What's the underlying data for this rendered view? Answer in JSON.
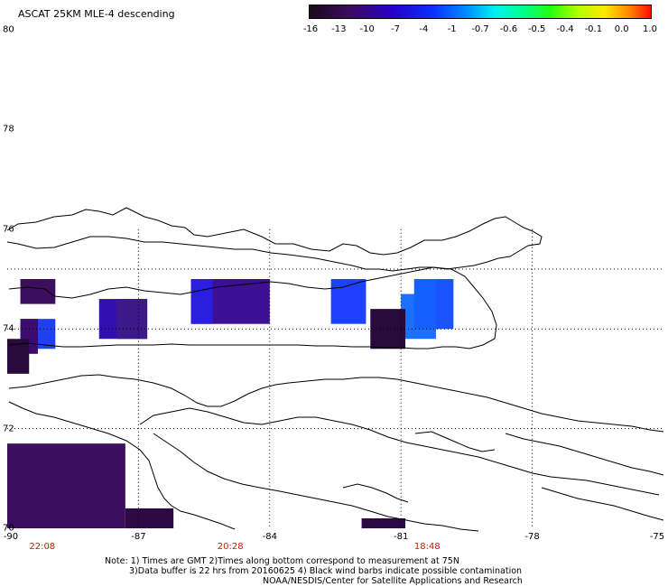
{
  "title": "ASCAT 25KM MLE-4 descending",
  "colorbar": {
    "labels": [
      "-16",
      "-13",
      "-10",
      "-7",
      "-4",
      "-1",
      "-0.7",
      "-0.6",
      "-0.5",
      "-0.4",
      "-0.1",
      "0.0",
      "1.0"
    ],
    "colors": [
      "#2a0030",
      "#3a0a63",
      "#2e00a8",
      "#1600ff",
      "#0070ff",
      "#00d2ff",
      "#00ffb0",
      "#10ff20",
      "#9aff00",
      "#ffff00",
      "#ffbf00",
      "#ff6a00",
      "#ff1000"
    ]
  },
  "y_axis": {
    "labels": [
      "80",
      "78",
      "76",
      "74",
      "72",
      "70"
    ],
    "values": [
      80,
      78,
      76,
      74,
      72,
      70
    ]
  },
  "x_axis": {
    "labels": [
      "-90",
      "-87",
      "-84",
      "-81",
      "-78",
      "-75"
    ],
    "values": [
      -90,
      -87,
      -84,
      -81,
      -78,
      -75
    ]
  },
  "pass_times": [
    {
      "label": "22:08",
      "lon": -89.2
    },
    {
      "label": "20:28",
      "lon": -84.9
    },
    {
      "label": "18:48",
      "lon": -80.4
    }
  ],
  "footer": {
    "line1": "Note: 1) Times are GMT 2)Times along bottom correspond to measurement at 75N",
    "line2": "3)Data buffer is 22 hrs from 20160625 4) Black wind barbs indicate possible contamination",
    "line3": "NOAA/NESDIS/Center for Satellite Applications and Research"
  },
  "swaths": [
    {
      "lon": [
        -89.7,
        -88.9
      ],
      "lat": [
        74.5,
        75.0
      ],
      "color": "#3d0e5e"
    },
    {
      "lon": [
        -89.7,
        -88.9
      ],
      "lat": [
        73.6,
        74.2
      ],
      "color": "#1f40f0"
    },
    {
      "lon": [
        -89.7,
        -89.3
      ],
      "lat": [
        73.5,
        74.2
      ],
      "color": "#3d0b6e"
    },
    {
      "lon": [
        -90.0,
        -89.5
      ],
      "lat": [
        73.1,
        73.8
      ],
      "color": "#2a0a3c"
    },
    {
      "lon": [
        -87.9,
        -86.8
      ],
      "lat": [
        73.8,
        74.6
      ],
      "color": "#3210b0"
    },
    {
      "lon": [
        -87.5,
        -86.8
      ],
      "lat": [
        73.8,
        74.6
      ],
      "color": "#3d1a8a"
    },
    {
      "lon": [
        -85.8,
        -84.0
      ],
      "lat": [
        74.1,
        75.0
      ],
      "color": "#3d0f92"
    },
    {
      "lon": [
        -85.8,
        -85.3
      ],
      "lat": [
        74.1,
        75.0
      ],
      "color": "#2c1ee0"
    },
    {
      "lon": [
        -82.6,
        -81.8
      ],
      "lat": [
        74.1,
        75.0
      ],
      "color": "#1e40ff"
    },
    {
      "lon": [
        -81.0,
        -80.2
      ],
      "lat": [
        73.8,
        74.7
      ],
      "color": "#1a70ff"
    },
    {
      "lon": [
        -80.7,
        -79.9
      ],
      "lat": [
        74.0,
        75.0
      ],
      "color": "#1560ff"
    },
    {
      "lon": [
        -80.2,
        -79.8
      ],
      "lat": [
        74.0,
        75.0
      ],
      "color": "#1a54ff"
    },
    {
      "lon": [
        -81.7,
        -80.9
      ],
      "lat": [
        73.6,
        74.4
      ],
      "color": "#2a0a3c"
    },
    {
      "lon": [
        -90.0,
        -87.3
      ],
      "lat": [
        70.0,
        71.7
      ],
      "color": "#3d0e5e"
    },
    {
      "lon": [
        -87.3,
        -86.2
      ],
      "lat": [
        70.0,
        70.4
      ],
      "color": "#2e0a45"
    },
    {
      "lon": [
        -81.9,
        -80.9
      ],
      "lat": [
        70.0,
        70.2
      ],
      "color": "#2e0a45"
    }
  ]
}
